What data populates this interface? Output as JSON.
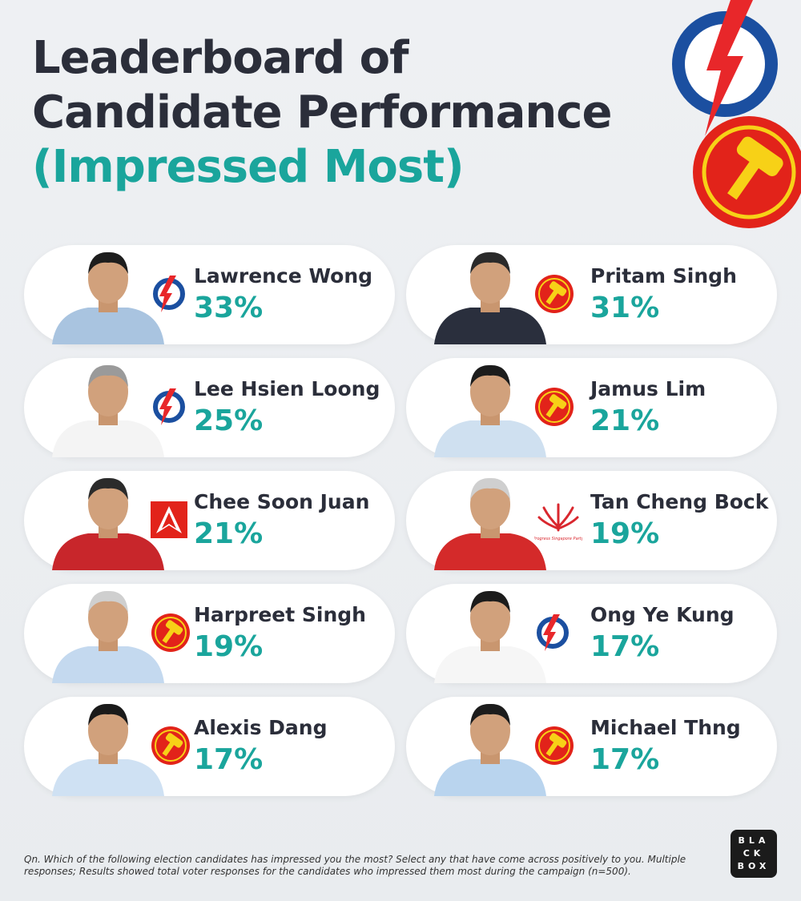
{
  "header": {
    "title_lines": [
      "Leaderboard of",
      "Candidate Performance",
      "(Impressed Most)"
    ]
  },
  "cards": [
    {
      "name": "Lawrence Wong",
      "value": "33%"
    },
    {
      "name": "Pritam Singh",
      "value": "31%"
    },
    {
      "name": "Lee Hsien Loong",
      "value": "25%"
    },
    {
      "name": "Jamus Lim",
      "value": "21%"
    },
    {
      "name": "Chee Soon Juan",
      "value": "21%"
    },
    {
      "name": "Tan Cheng Bock",
      "value": "19%"
    },
    {
      "name": "Harpreet Singh",
      "value": "19%"
    },
    {
      "name": "Ong Ye Kung",
      "value": "17%"
    },
    {
      "name": "Alexis Dang",
      "value": "17%"
    },
    {
      "name": "Michael Thng",
      "value": "17%"
    }
  ],
  "psp_logo_text": "Progress Singapore Party",
  "footnote": "Qn. Which of the following election candidates has impressed you the most? Select any that have come across positively to you. Multiple responses; Results showed total voter responses for the candidates who impressed them most during the campaign (n=500).",
  "brand_lines": [
    "BLA",
    "CK",
    "BOX"
  ]
}
